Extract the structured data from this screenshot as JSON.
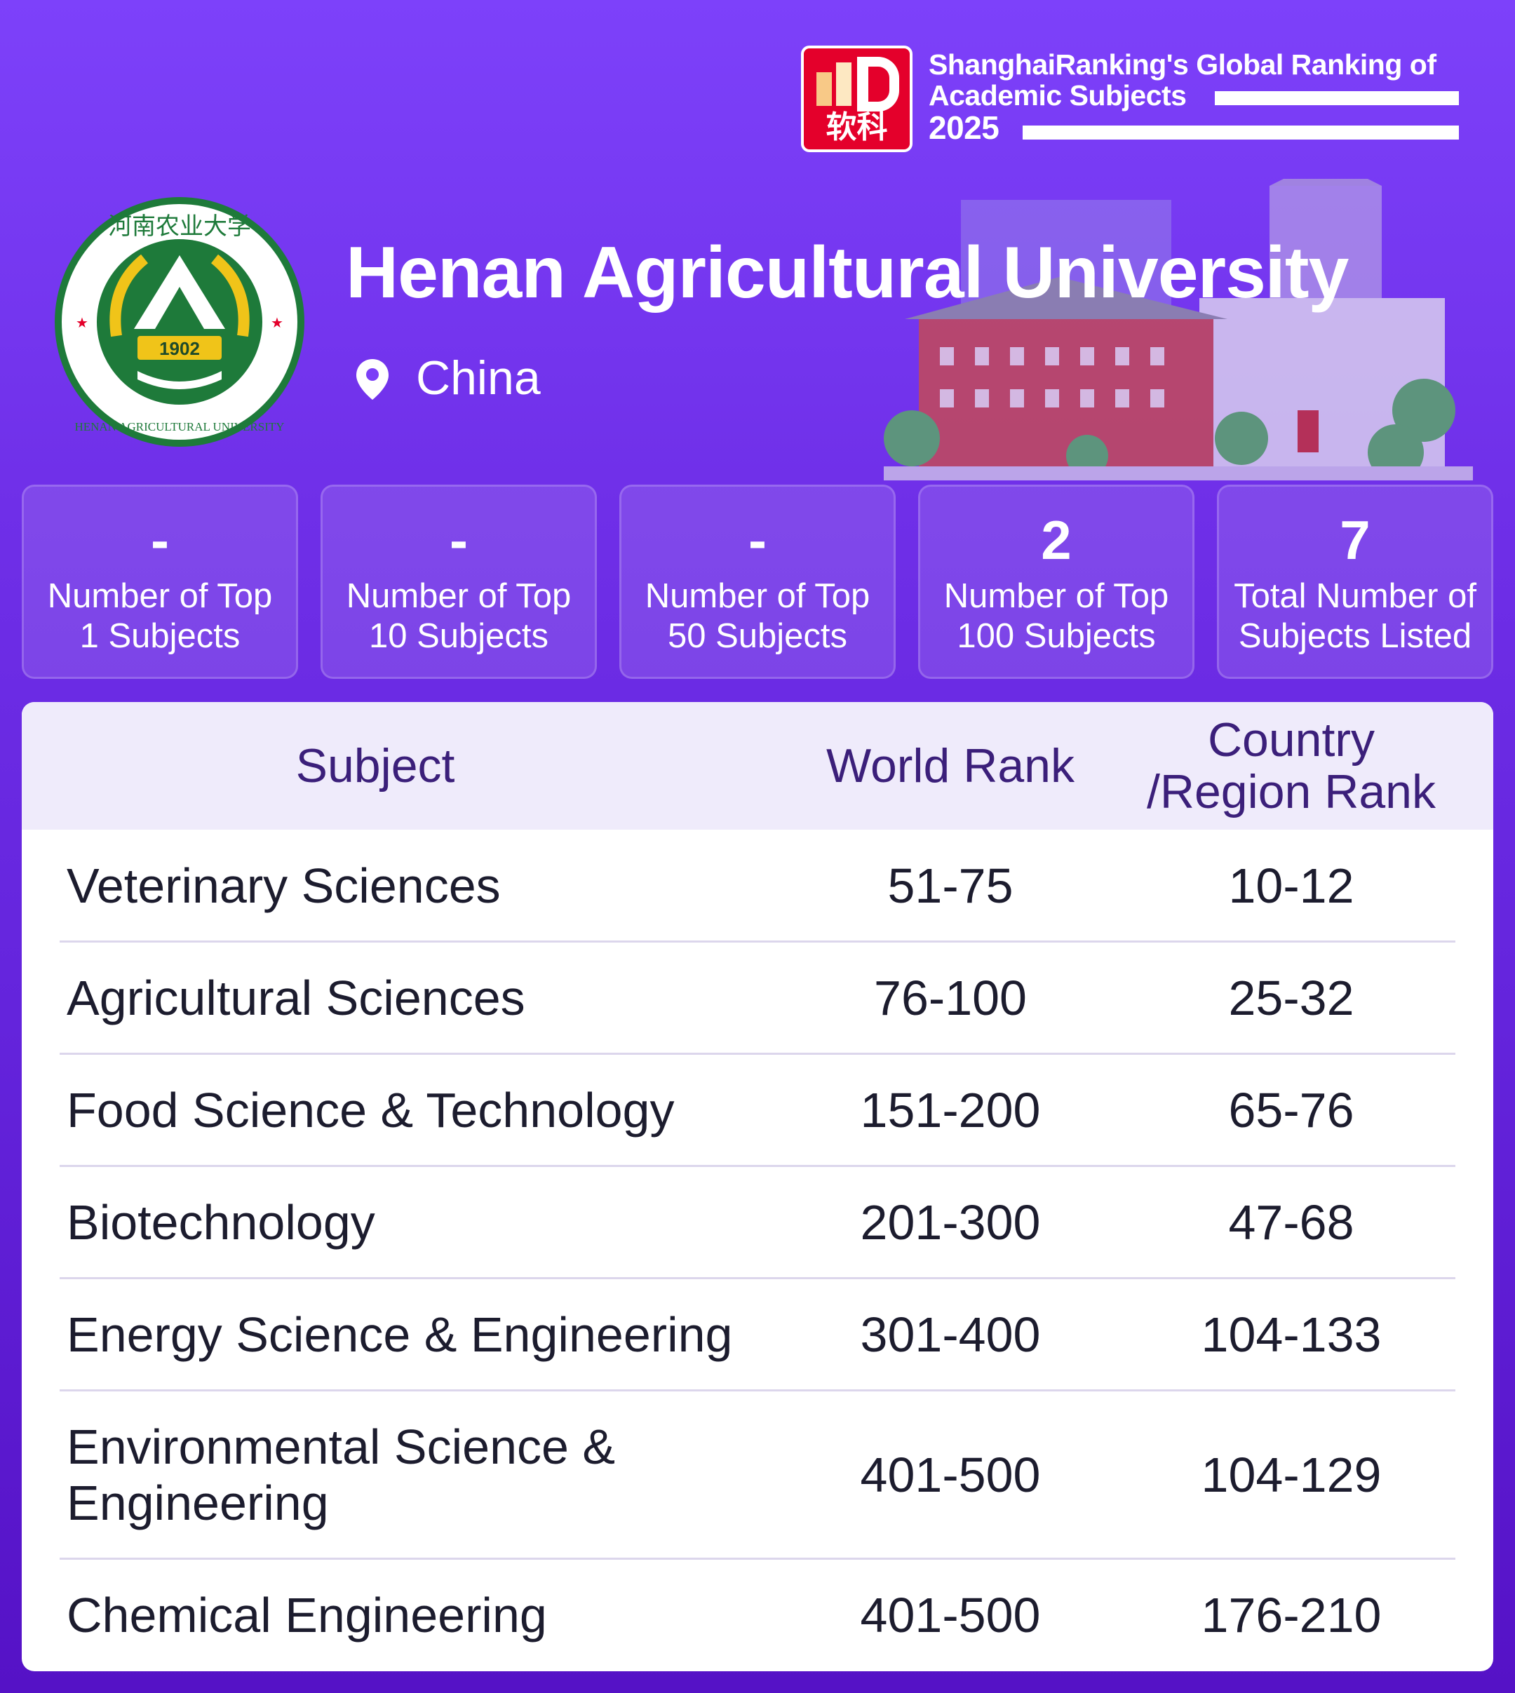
{
  "brand": {
    "logo_text": "软科",
    "line1": "ShanghaiRanking's Global Ranking of",
    "line2": "Academic Subjects",
    "year": "2025"
  },
  "university": {
    "name": "Henan Agricultural University",
    "country": "China",
    "logo_year": "1902",
    "logo_text_en": "HENAN AGRICULTURAL UNIVERSITY",
    "logo_text_zh": "河南农业大学"
  },
  "stats": [
    {
      "value": "-",
      "label1": "Number of Top",
      "label2": "1 Subjects"
    },
    {
      "value": "-",
      "label1": "Number of Top",
      "label2": "10 Subjects"
    },
    {
      "value": "-",
      "label1": "Number of Top",
      "label2": "50 Subjects"
    },
    {
      "value": "2",
      "label1": "Number of Top",
      "label2": "100 Subjects"
    },
    {
      "value": "7",
      "label1": "Total Number of",
      "label2": "Subjects Listed"
    }
  ],
  "table": {
    "headers": {
      "subject": "Subject",
      "world": "World Rank",
      "country1": "Country",
      "country2": "/Region Rank"
    },
    "rows": [
      {
        "subject": "Veterinary Sciences",
        "world": "51-75",
        "country": "10-12"
      },
      {
        "subject": "Agricultural Sciences",
        "world": "76-100",
        "country": "25-32"
      },
      {
        "subject": "Food Science & Technology",
        "world": "151-200",
        "country": "65-76"
      },
      {
        "subject": "Biotechnology",
        "world": "201-300",
        "country": "47-68"
      },
      {
        "subject": "Energy Science & Engineering",
        "world": "301-400",
        "country": "104-133"
      },
      {
        "subject": "Environmental Science & Engineering",
        "world": "401-500",
        "country": "104-129"
      },
      {
        "subject": "Chemical Engineering",
        "world": "401-500",
        "country": "176-210"
      }
    ]
  },
  "colors": {
    "accent": "#7b3ff7",
    "header_text": "#3b1f7a",
    "brand_red": "#e4002b"
  }
}
